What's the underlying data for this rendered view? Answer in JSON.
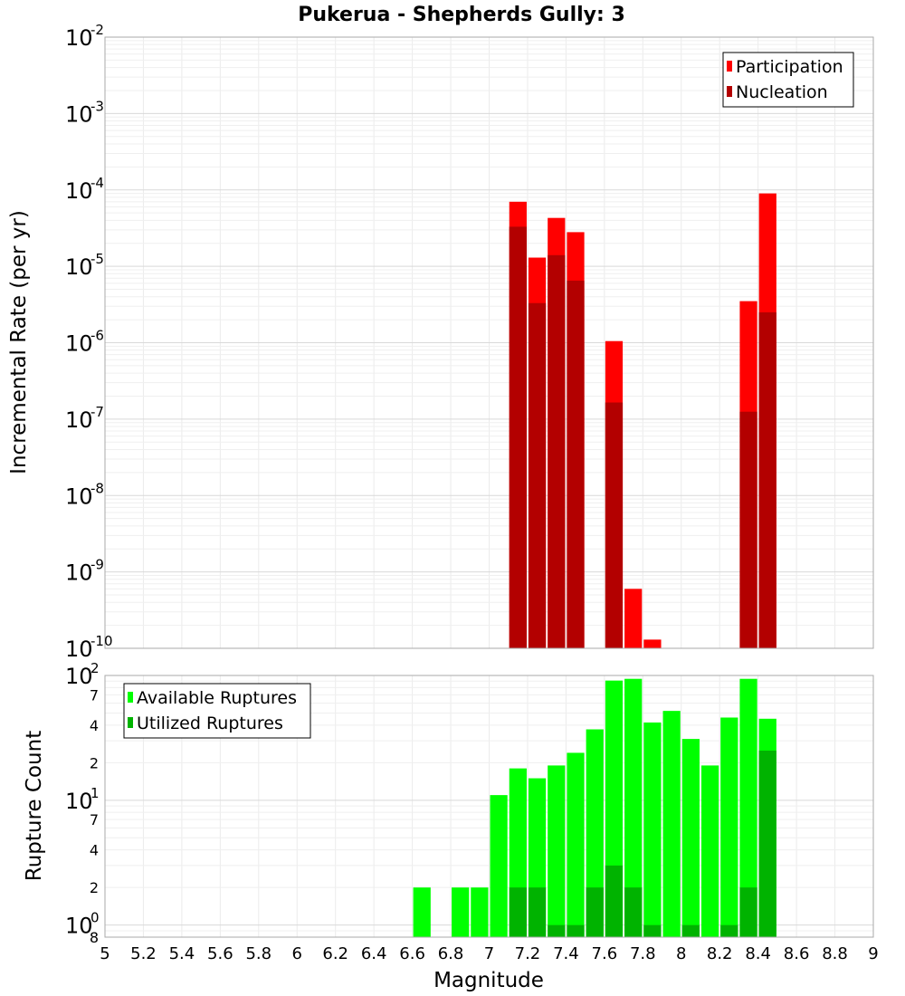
{
  "chart_data": {
    "title": "Pukerua - Shepherds Gully: 3",
    "xlabel": "Magnitude",
    "xlim": [
      5,
      9
    ],
    "xticks": [
      "5",
      "5.2",
      "5.4",
      "5.6",
      "5.8",
      "6",
      "6.2",
      "6.4",
      "6.6",
      "6.8",
      "7",
      "7.2",
      "7.4",
      "7.6",
      "7.8",
      "8",
      "8.2",
      "8.4",
      "8.6",
      "8.8",
      "9"
    ],
    "bin_width": 0.1,
    "panels": [
      {
        "type": "bar",
        "scale": "log",
        "ylabel": "Incremental Rate (per yr)",
        "ylim": [
          1e-10,
          0.01
        ],
        "yticks": [
          {
            "base": "10",
            "exp": "-2"
          },
          {
            "base": "10",
            "exp": "-3"
          },
          {
            "base": "10",
            "exp": "-4"
          },
          {
            "base": "10",
            "exp": "-5"
          },
          {
            "base": "10",
            "exp": "-6"
          },
          {
            "base": "10",
            "exp": "-7"
          },
          {
            "base": "10",
            "exp": "-8"
          },
          {
            "base": "10",
            "exp": "-9"
          },
          {
            "base": "10",
            "exp": "-10"
          }
        ],
        "legend": {
          "position": "top-right"
        },
        "series": [
          {
            "name": "Participation",
            "color": "#ff0000",
            "points": [
              {
                "x": 7.15,
                "y": 7e-05
              },
              {
                "x": 7.25,
                "y": 1.3e-05
              },
              {
                "x": 7.35,
                "y": 4.3e-05
              },
              {
                "x": 7.45,
                "y": 2.8e-05
              },
              {
                "x": 7.65,
                "y": 1.05e-06
              },
              {
                "x": 7.75,
                "y": 6e-10
              },
              {
                "x": 7.85,
                "y": 1.3e-10
              },
              {
                "x": 8.35,
                "y": 3.5e-06
              },
              {
                "x": 8.45,
                "y": 9e-05
              }
            ]
          },
          {
            "name": "Nucleation",
            "color": "#b30000",
            "points": [
              {
                "x": 7.15,
                "y": 3.3e-05
              },
              {
                "x": 7.25,
                "y": 3.3e-06
              },
              {
                "x": 7.35,
                "y": 1.4e-05
              },
              {
                "x": 7.45,
                "y": 6.5e-06
              },
              {
                "x": 7.65,
                "y": 1.65e-07
              },
              {
                "x": 8.35,
                "y": 1.25e-07
              },
              {
                "x": 8.45,
                "y": 2.5e-06
              }
            ]
          }
        ]
      },
      {
        "type": "bar",
        "scale": "log",
        "ylabel": "Rupture Count",
        "ylim": [
          0.8,
          100
        ],
        "yticks": [
          {
            "base": "10",
            "exp": "2"
          },
          {
            "base": "10",
            "exp": "1"
          },
          {
            "base": "10",
            "exp": "0"
          }
        ],
        "yminor": [
          {
            "label": "7",
            "value": 70
          },
          {
            "label": "4",
            "value": 40
          },
          {
            "label": "2",
            "value": 20
          },
          {
            "label": "7",
            "value": 7
          },
          {
            "label": "4",
            "value": 4
          },
          {
            "label": "2",
            "value": 2
          },
          {
            "label": "8",
            "value": 0.8
          }
        ],
        "legend": {
          "position": "top-left"
        },
        "series": [
          {
            "name": "Available Ruptures",
            "color": "#00ff00",
            "points": [
              {
                "x": 6.65,
                "y": 2
              },
              {
                "x": 6.85,
                "y": 2
              },
              {
                "x": 6.95,
                "y": 2
              },
              {
                "x": 7.05,
                "y": 11
              },
              {
                "x": 7.15,
                "y": 18
              },
              {
                "x": 7.25,
                "y": 15
              },
              {
                "x": 7.35,
                "y": 19
              },
              {
                "x": 7.45,
                "y": 24
              },
              {
                "x": 7.55,
                "y": 37
              },
              {
                "x": 7.65,
                "y": 91
              },
              {
                "x": 7.75,
                "y": 94
              },
              {
                "x": 7.85,
                "y": 42
              },
              {
                "x": 7.95,
                "y": 52
              },
              {
                "x": 8.05,
                "y": 31
              },
              {
                "x": 8.15,
                "y": 19
              },
              {
                "x": 8.25,
                "y": 46
              },
              {
                "x": 8.35,
                "y": 94
              },
              {
                "x": 8.45,
                "y": 45
              }
            ]
          },
          {
            "name": "Utilized Ruptures",
            "color": "#00b300",
            "points": [
              {
                "x": 7.15,
                "y": 2
              },
              {
                "x": 7.25,
                "y": 2
              },
              {
                "x": 7.35,
                "y": 1
              },
              {
                "x": 7.45,
                "y": 1
              },
              {
                "x": 7.55,
                "y": 2
              },
              {
                "x": 7.65,
                "y": 3
              },
              {
                "x": 7.75,
                "y": 2
              },
              {
                "x": 7.85,
                "y": 1
              },
              {
                "x": 8.05,
                "y": 1
              },
              {
                "x": 8.25,
                "y": 1
              },
              {
                "x": 8.35,
                "y": 2
              },
              {
                "x": 8.45,
                "y": 25
              }
            ]
          }
        ]
      }
    ]
  }
}
